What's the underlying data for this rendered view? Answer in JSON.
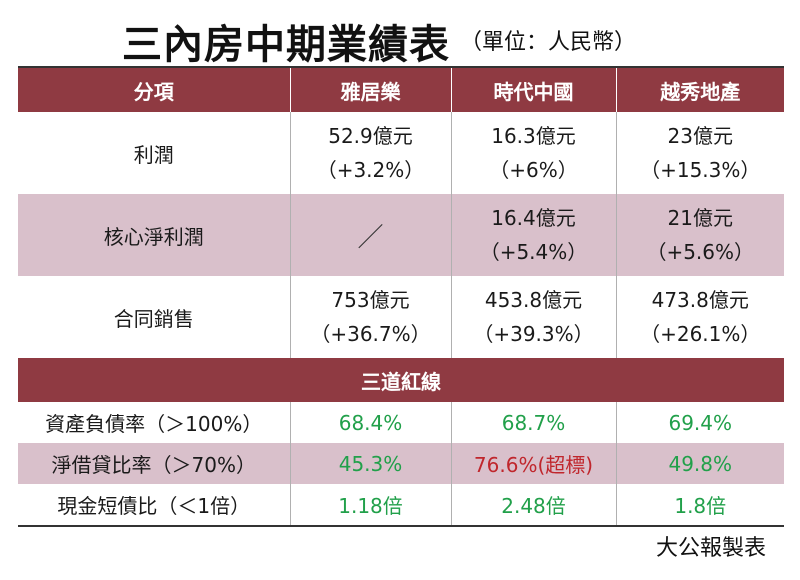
{
  "title": "三內房中期業績表",
  "unit": "（單位：人民幣）",
  "headers": [
    "分項",
    "雅居樂",
    "時代中國",
    "越秀地產"
  ],
  "rows_top": [
    {
      "label": "利潤",
      "cells": [
        {
          "value": "52.9億元",
          "change": "（+3.2%）"
        },
        {
          "value": "16.3億元",
          "change": "（+6%）"
        },
        {
          "value": "23億元",
          "change": "（+15.3%）"
        }
      ]
    },
    {
      "label": "核心淨利潤",
      "cells": [
        {
          "value": "／",
          "change": ""
        },
        {
          "value": "16.4億元",
          "change": "（+5.4%）"
        },
        {
          "value": "21億元",
          "change": "（+5.6%）"
        }
      ]
    },
    {
      "label": "合同銷售",
      "cells": [
        {
          "value": "753億元",
          "change": "（+36.7%）"
        },
        {
          "value": "453.8億元",
          "change": "（+39.3%）"
        },
        {
          "value": "473.8億元",
          "change": "（+26.1%）"
        }
      ]
    }
  ],
  "section_title": "三道紅線",
  "rows_bottom": [
    {
      "label": "資產負債率（＞100%）",
      "cells": [
        "68.4%",
        "68.7%",
        "69.4%"
      ]
    },
    {
      "label": "淨借貸比率（＞70%）",
      "cells": [
        "45.3%",
        "76.6%(超標)",
        "49.8%"
      ]
    },
    {
      "label": "現金短債比（＜1倍）",
      "cells": [
        "1.18倍",
        "2.48倍",
        "1.8倍"
      ]
    }
  ],
  "colors": {
    "header_bg": "#8f3a42",
    "band_bg": "#d9c0cb",
    "good": "#21a04a",
    "bad": "#c0262c"
  },
  "credit": "大公報製表"
}
